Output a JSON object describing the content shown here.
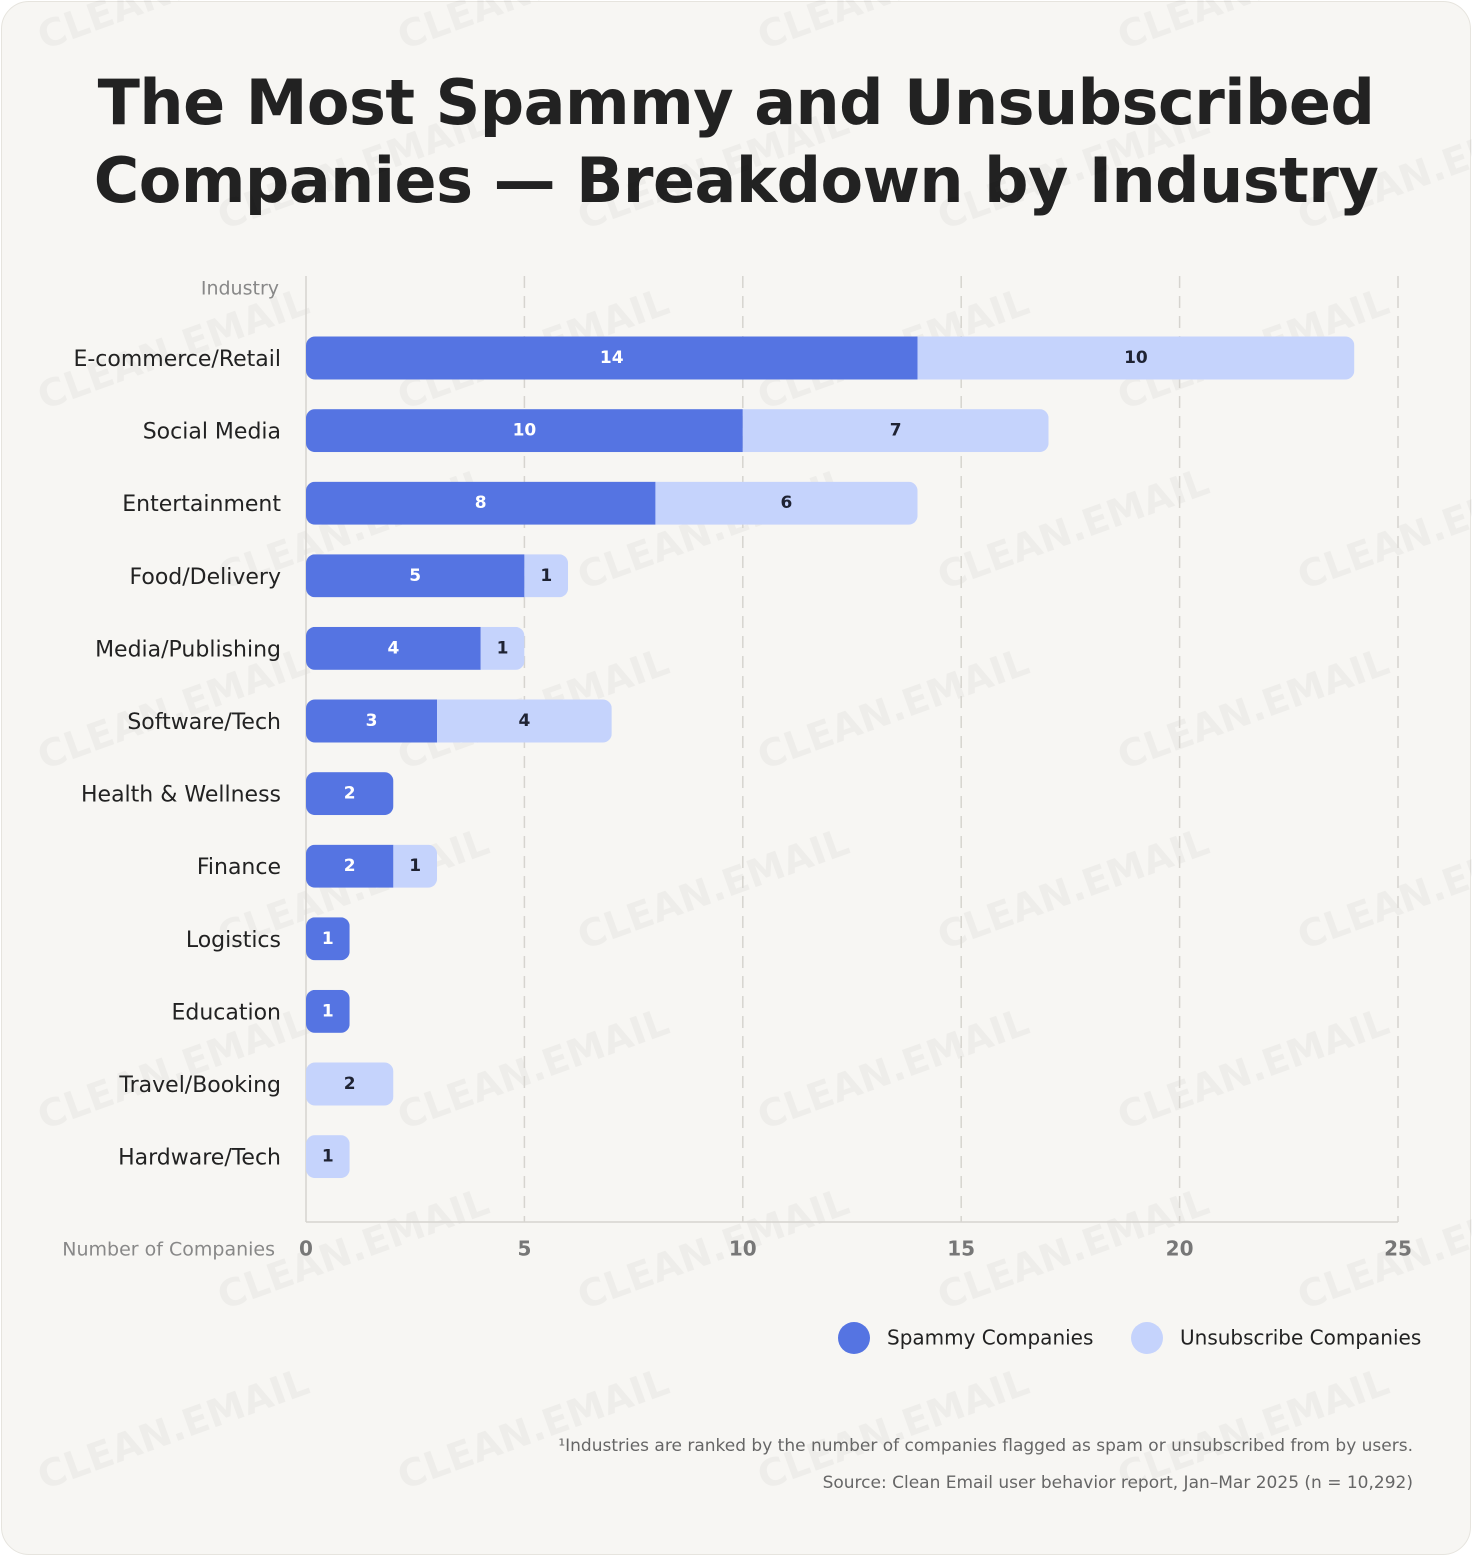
{
  "chart_data": {
    "type": "bar",
    "orientation": "horizontal",
    "stacked": true,
    "title": "The Most Spammy and Unsubscribed\nCompanies —  Breakdown by Industry",
    "y_label": "Industry",
    "x_label": "Number of Companies",
    "categories": [
      "E-commerce/Retail",
      "Social Media",
      "Entertainment",
      "Food/Delivery",
      "Media/Publishing",
      "Software/Tech",
      "Health & Wellness",
      "Finance",
      "Logistics",
      "Education",
      "Travel/Booking",
      "Hardware/Tech"
    ],
    "series": [
      {
        "name": "Spammy Companies",
        "color": "#5574e2",
        "label_color": "#ffffff",
        "values": [
          14,
          10,
          8,
          5,
          4,
          3,
          2,
          2,
          1,
          1,
          0,
          0
        ]
      },
      {
        "name": "Unsubscribe Companies",
        "color": "#c5d3fc",
        "label_color": "#1f2333",
        "values": [
          10,
          7,
          6,
          1,
          1,
          4,
          0,
          1,
          0,
          0,
          2,
          1
        ]
      }
    ],
    "xlim": [
      0,
      25
    ],
    "xticks": [
      0,
      5,
      10,
      15,
      20,
      25
    ],
    "grid": true,
    "legend": "bottom-right",
    "footnote": "¹Industries are ranked by the number of companies flagged as spam or unsubscribed from by users.",
    "source": "Source: Clean Email user behavior report, Jan–Mar 2025 (n = 10,292)",
    "watermark": "CLEAN.EMAIL"
  }
}
